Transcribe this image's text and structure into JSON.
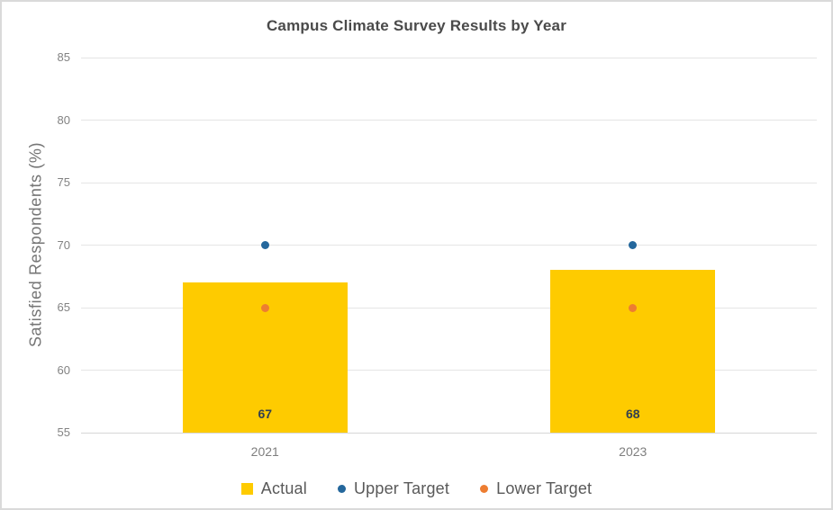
{
  "chart_data": {
    "type": "bar",
    "title": "Campus Climate Survey Results by Year",
    "xlabel": "",
    "ylabel": "Satisfied Respondents (%)",
    "categories": [
      "2021",
      "2023"
    ],
    "series": [
      {
        "name": "Actual",
        "type": "bar",
        "color": "#fecb00",
        "values": [
          67,
          68
        ],
        "data_labels": [
          "67",
          "68"
        ]
      },
      {
        "name": "Upper Target",
        "type": "point",
        "color": "#24679c",
        "values": [
          70,
          70
        ]
      },
      {
        "name": "Lower Target",
        "type": "point",
        "color": "#ed7d31",
        "values": [
          65,
          65
        ]
      }
    ],
    "ylim": [
      55,
      85
    ],
    "yticks": [
      55,
      60,
      65,
      70,
      75,
      80,
      85
    ],
    "grid": true,
    "legend_position": "bottom",
    "colors": {
      "grid": "#e5e5e5",
      "axis_text": "#828282",
      "title_text": "#4a4a4a",
      "legend_text": "#595959",
      "bar_label_text": "#33404f"
    }
  }
}
